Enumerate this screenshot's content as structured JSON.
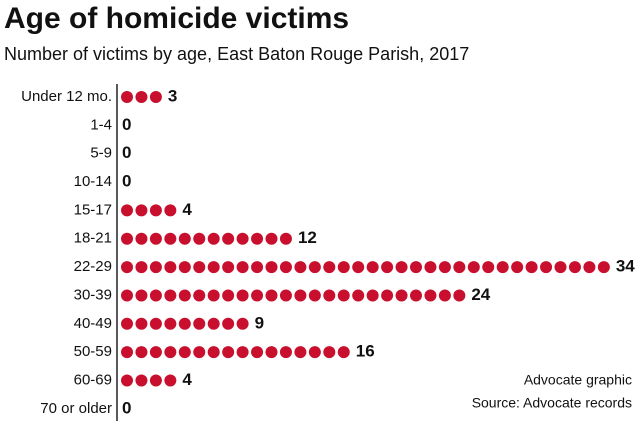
{
  "chart_data": {
    "type": "dot",
    "title": "Age of homicide victims",
    "subtitle": "Number of victims by age, East Baton Rouge Parish, 2017",
    "categories": [
      "Under 12 mo.",
      "1-4",
      "5-9",
      "10-14",
      "15-17",
      "18-21",
      "22-29",
      "30-39",
      "40-49",
      "50-59",
      "60-69",
      "70 or older"
    ],
    "values": [
      3,
      0,
      0,
      0,
      4,
      12,
      34,
      24,
      9,
      16,
      4,
      0
    ],
    "color": "#c8102e",
    "notes": [
      "Advocate graphic",
      "Source: Advocate records"
    ]
  }
}
